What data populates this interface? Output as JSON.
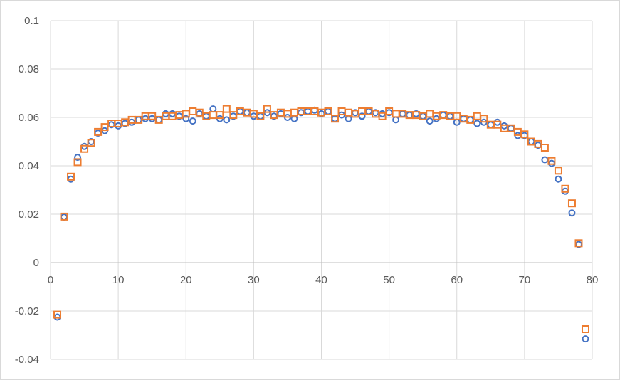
{
  "chart_data": {
    "type": "scatter",
    "title": "",
    "xlabel": "",
    "ylabel": "",
    "xlim": [
      0,
      80
    ],
    "ylim": [
      -0.04,
      0.1
    ],
    "x_ticks": [
      "0",
      "10",
      "20",
      "30",
      "40",
      "50",
      "60",
      "70",
      "80"
    ],
    "y_ticks": [
      "0.1",
      "0.08",
      "0.06",
      "0.04",
      "0.02",
      "0",
      "-0.02",
      "-0.04"
    ],
    "grid": true,
    "series": [
      {
        "marker": "circle",
        "color": "#4472c4",
        "x": [
          1,
          2,
          3,
          4,
          5,
          6,
          7,
          8,
          9,
          10,
          11,
          12,
          13,
          14,
          15,
          16,
          17,
          18,
          19,
          20,
          21,
          22,
          23,
          24,
          25,
          26,
          27,
          28,
          29,
          30,
          31,
          32,
          33,
          34,
          35,
          36,
          37,
          38,
          39,
          40,
          41,
          42,
          43,
          44,
          45,
          46,
          47,
          48,
          49,
          50,
          51,
          52,
          53,
          54,
          55,
          56,
          57,
          58,
          59,
          60,
          61,
          62,
          63,
          64,
          65,
          66,
          67,
          68,
          69,
          70,
          71,
          72,
          73,
          74,
          75,
          76,
          77,
          78,
          79
        ],
        "y": [
          -0.0225,
          0.0188,
          0.0345,
          0.0435,
          0.048,
          0.05,
          0.0535,
          0.0545,
          0.057,
          0.0565,
          0.0575,
          0.058,
          0.059,
          0.0595,
          0.0595,
          0.059,
          0.0615,
          0.0615,
          0.0605,
          0.0595,
          0.0585,
          0.0615,
          0.0605,
          0.0635,
          0.0595,
          0.059,
          0.0605,
          0.0625,
          0.062,
          0.0605,
          0.0605,
          0.062,
          0.0605,
          0.0615,
          0.06,
          0.0595,
          0.062,
          0.0625,
          0.063,
          0.0615,
          0.0625,
          0.0595,
          0.061,
          0.0595,
          0.062,
          0.0605,
          0.0625,
          0.062,
          0.0615,
          0.062,
          0.059,
          0.0615,
          0.061,
          0.0615,
          0.0605,
          0.0585,
          0.0595,
          0.061,
          0.0605,
          0.058,
          0.0595,
          0.059,
          0.0575,
          0.058,
          0.057,
          0.058,
          0.0565,
          0.0555,
          0.0525,
          0.0525,
          0.05,
          0.0485,
          0.0425,
          0.041,
          0.0345,
          0.0295,
          0.0205,
          0.0075,
          -0.0315
        ]
      },
      {
        "marker": "square",
        "color": "#ed7d31",
        "x": [
          1,
          2,
          3,
          4,
          5,
          6,
          7,
          8,
          9,
          10,
          11,
          12,
          13,
          14,
          15,
          16,
          17,
          18,
          19,
          20,
          21,
          22,
          23,
          24,
          25,
          26,
          27,
          28,
          29,
          30,
          31,
          32,
          33,
          34,
          35,
          36,
          37,
          38,
          39,
          40,
          41,
          42,
          43,
          44,
          45,
          46,
          47,
          48,
          49,
          50,
          51,
          52,
          53,
          54,
          55,
          56,
          57,
          58,
          59,
          60,
          61,
          62,
          63,
          64,
          65,
          66,
          67,
          68,
          69,
          70,
          71,
          72,
          73,
          74,
          75,
          76,
          77,
          78,
          79
        ],
        "y": [
          -0.0215,
          0.019,
          0.0355,
          0.0415,
          0.047,
          0.0495,
          0.054,
          0.056,
          0.0575,
          0.0575,
          0.058,
          0.059,
          0.059,
          0.0605,
          0.0605,
          0.059,
          0.0605,
          0.0605,
          0.061,
          0.0615,
          0.0625,
          0.062,
          0.0605,
          0.061,
          0.061,
          0.0635,
          0.061,
          0.0625,
          0.062,
          0.0615,
          0.0605,
          0.0635,
          0.061,
          0.062,
          0.0615,
          0.062,
          0.0625,
          0.0625,
          0.0625,
          0.062,
          0.0625,
          0.0595,
          0.0625,
          0.062,
          0.0615,
          0.0625,
          0.0625,
          0.0615,
          0.0605,
          0.0625,
          0.0615,
          0.0615,
          0.061,
          0.061,
          0.0605,
          0.0615,
          0.0605,
          0.061,
          0.0605,
          0.0605,
          0.0595,
          0.059,
          0.0605,
          0.0595,
          0.057,
          0.057,
          0.0555,
          0.0555,
          0.054,
          0.053,
          0.05,
          0.049,
          0.0475,
          0.042,
          0.038,
          0.0305,
          0.0245,
          0.008,
          -0.0275
        ]
      }
    ]
  }
}
